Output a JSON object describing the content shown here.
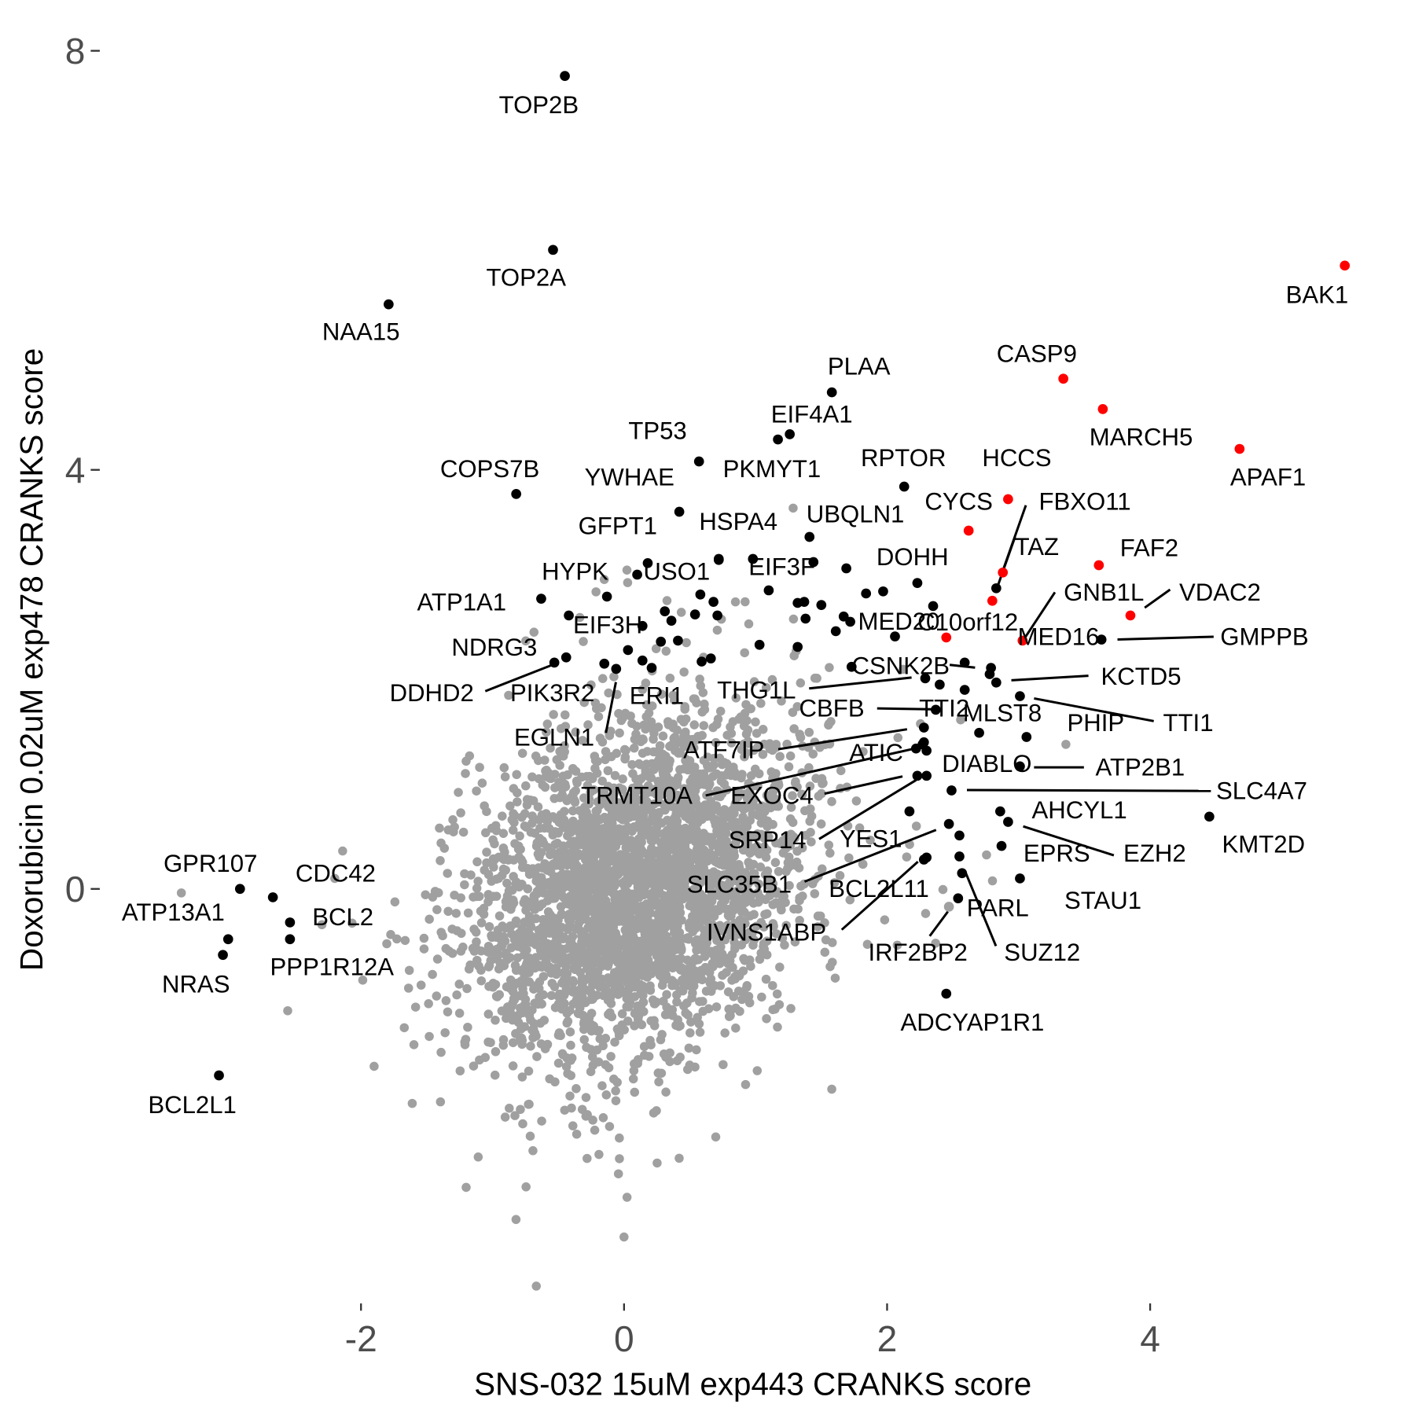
{
  "chart_data": {
    "type": "scatter",
    "title": "",
    "xlabel": "SNS-032 15uM exp443 CRANKS score",
    "ylabel": "Doxorubicin 0.02uM exp478 CRANKS score",
    "xlim": [
      -3.7,
      5.8
    ],
    "ylim": [
      -3.9,
      8.2
    ],
    "x_ticks": [
      -2,
      0,
      2,
      4
    ],
    "y_ticks": [
      0,
      4,
      8
    ],
    "x_tick_labels": [
      "-2",
      "0",
      "2",
      "4"
    ],
    "y_tick_labels": [
      "0",
      "4",
      "8"
    ],
    "grid": false,
    "legend": "none",
    "colors": {
      "background_genes": "#a0a0a0",
      "hit_genes": "#000000",
      "highlight_genes": "#ff0000",
      "label_line": "#000000"
    },
    "background_distribution": {
      "count": 3200,
      "x_mean": 0.1,
      "y_mean": 0.0,
      "x_sd": 0.62,
      "y_sd": 0.78,
      "correlation": 0.3,
      "seed": 7
    },
    "labeled_points": [
      {
        "gene": "TOP2B",
        "x": -0.45,
        "y": 7.76,
        "group": "hit"
      },
      {
        "gene": "TOP2A",
        "x": -0.54,
        "y": 6.1,
        "group": "hit"
      },
      {
        "gene": "NAA15",
        "x": -1.79,
        "y": 5.58,
        "group": "hit"
      },
      {
        "gene": "BAK1",
        "x": 5.48,
        "y": 5.95,
        "group": "highlight"
      },
      {
        "gene": "CASP9",
        "x": 3.34,
        "y": 4.87,
        "group": "highlight"
      },
      {
        "gene": "MARCH5",
        "x": 3.64,
        "y": 4.58,
        "group": "highlight"
      },
      {
        "gene": "APAF1",
        "x": 4.68,
        "y": 4.2,
        "group": "highlight"
      },
      {
        "gene": "PLAA",
        "x": 1.58,
        "y": 4.74,
        "group": "hit"
      },
      {
        "gene": "EIF4A1",
        "x": 1.26,
        "y": 4.34,
        "group": "hit"
      },
      {
        "gene": "TP53",
        "x": 0.57,
        "y": 4.08,
        "group": "hit"
      },
      {
        "gene": "PKMYT1",
        "x": 1.17,
        "y": 4.29,
        "group": "hit"
      },
      {
        "gene": "RPTOR",
        "x": 2.13,
        "y": 3.84,
        "group": "hit"
      },
      {
        "gene": "HCCS",
        "x": 2.92,
        "y": 3.72,
        "group": "highlight"
      },
      {
        "gene": "COPS7B",
        "x": -0.82,
        "y": 3.77,
        "group": "hit"
      },
      {
        "gene": "YWHAE",
        "x": 0.42,
        "y": 3.6,
        "group": "hit"
      },
      {
        "gene": "CYCS",
        "x": 2.62,
        "y": 3.42,
        "group": "highlight"
      },
      {
        "gene": "UBQLN1",
        "x": 1.41,
        "y": 3.36,
        "group": "hit"
      },
      {
        "gene": "HSPA4",
        "x": 0.72,
        "y": 3.15,
        "group": "hit"
      },
      {
        "gene": "GFPT1",
        "x": 0.18,
        "y": 3.11,
        "group": "hit"
      },
      {
        "gene": "FBXO11",
        "x": 2.88,
        "y": 3.02,
        "group": "highlight"
      },
      {
        "gene": "TAZ",
        "x": 2.83,
        "y": 2.87,
        "group": "hit"
      },
      {
        "gene": "FAF2",
        "x": 3.61,
        "y": 3.09,
        "group": "highlight"
      },
      {
        "gene": "DOHH",
        "x": 2.23,
        "y": 2.92,
        "group": "hit"
      },
      {
        "gene": "EIF3F",
        "x": 1.44,
        "y": 3.12,
        "group": "hit"
      },
      {
        "gene": "USO1",
        "x": 0.1,
        "y": 3.0,
        "group": "hit"
      },
      {
        "gene": "HYPK",
        "x": -0.13,
        "y": 2.79,
        "group": "hit"
      },
      {
        "gene": "ATP1A1",
        "x": -0.63,
        "y": 2.77,
        "group": "hit"
      },
      {
        "gene": "GNB1L",
        "x": 3.03,
        "y": 2.37,
        "group": "highlight"
      },
      {
        "gene": "VDAC2",
        "x": 3.85,
        "y": 2.61,
        "group": "highlight"
      },
      {
        "gene": "MED20",
        "x": 2.06,
        "y": 2.41,
        "group": "hit"
      },
      {
        "gene": "C10orf12",
        "x": 2.45,
        "y": 2.4,
        "group": "highlight"
      },
      {
        "gene": "MED16",
        "x": 2.8,
        "y": 2.75,
        "group": "highlight"
      },
      {
        "gene": "GMPPB",
        "x": 3.63,
        "y": 2.38,
        "group": "hit"
      },
      {
        "gene": "EIF3H",
        "x": -0.42,
        "y": 2.61,
        "group": "hit"
      },
      {
        "gene": "NDRG3",
        "x": -0.44,
        "y": 2.21,
        "group": "hit"
      },
      {
        "gene": "DDHD2",
        "x": -0.53,
        "y": 2.16,
        "group": "hit"
      },
      {
        "gene": "CSNK2B",
        "x": 2.79,
        "y": 2.11,
        "group": "hit"
      },
      {
        "gene": "KCTD5",
        "x": 2.83,
        "y": 1.97,
        "group": "hit"
      },
      {
        "gene": "THG1L",
        "x": 2.29,
        "y": 2.01,
        "group": "hit"
      },
      {
        "gene": "PIK3R2",
        "x": -0.15,
        "y": 2.15,
        "group": "hit"
      },
      {
        "gene": "ERI1",
        "x": 0.03,
        "y": 2.28,
        "group": "hit"
      },
      {
        "gene": "EGLN1",
        "x": -0.06,
        "y": 2.1,
        "group": "hit"
      },
      {
        "gene": "CBFB",
        "x": 2.37,
        "y": 1.71,
        "group": "hit"
      },
      {
        "gene": "TTI2",
        "x": 2.59,
        "y": 1.9,
        "group": "hit"
      },
      {
        "gene": "MLST8",
        "x": 2.7,
        "y": 1.49,
        "group": "hit"
      },
      {
        "gene": "TTI1",
        "x": 3.01,
        "y": 1.84,
        "group": "hit"
      },
      {
        "gene": "PHIP",
        "x": 3.06,
        "y": 1.45,
        "group": "hit"
      },
      {
        "gene": "ATF7IP",
        "x": 2.28,
        "y": 1.54,
        "group": "hit"
      },
      {
        "gene": "ATIC",
        "x": 2.28,
        "y": 1.4,
        "group": "hit"
      },
      {
        "gene": "DIABLO",
        "x": 2.3,
        "y": 1.32,
        "group": "hit"
      },
      {
        "gene": "ATP2B1",
        "x": 3.01,
        "y": 1.17,
        "group": "hit"
      },
      {
        "gene": "TRMT10A",
        "x": 2.22,
        "y": 1.34,
        "group": "hit"
      },
      {
        "gene": "EXOC4",
        "x": 2.23,
        "y": 1.08,
        "group": "hit"
      },
      {
        "gene": "SLC4A7",
        "x": 2.49,
        "y": 0.94,
        "group": "hit"
      },
      {
        "gene": "SRP14",
        "x": 2.3,
        "y": 1.08,
        "group": "hit"
      },
      {
        "gene": "YES1",
        "x": 2.17,
        "y": 0.74,
        "group": "hit"
      },
      {
        "gene": "SLC35B1",
        "x": 2.47,
        "y": 0.62,
        "group": "hit"
      },
      {
        "gene": "AHCYL1",
        "x": 2.86,
        "y": 0.74,
        "group": "hit"
      },
      {
        "gene": "EZH2",
        "x": 2.92,
        "y": 0.64,
        "group": "hit"
      },
      {
        "gene": "KMT2D",
        "x": 4.45,
        "y": 0.69,
        "group": "hit"
      },
      {
        "gene": "EPRS",
        "x": 2.87,
        "y": 0.41,
        "group": "hit"
      },
      {
        "gene": "BCL2L11",
        "x": 2.28,
        "y": 0.28,
        "group": "hit"
      },
      {
        "gene": "STAU1",
        "x": 3.01,
        "y": 0.1,
        "group": "hit"
      },
      {
        "gene": "IVNS1ABP",
        "x": 2.3,
        "y": 0.3,
        "group": "hit"
      },
      {
        "gene": "PARL",
        "x": 2.54,
        "y": -0.09,
        "group": "hit"
      },
      {
        "gene": "SUZ12",
        "x": 2.57,
        "y": 0.15,
        "group": "hit"
      },
      {
        "gene": "IRF2BP2",
        "x": 2.47,
        "y": -0.17,
        "group": "background"
      },
      {
        "gene": "ADCYAP1R1",
        "x": 2.45,
        "y": -1.0,
        "group": "hit"
      },
      {
        "gene": "GPR107",
        "x": -2.92,
        "y": 0.0,
        "group": "hit"
      },
      {
        "gene": "CDC42",
        "x": -2.67,
        "y": -0.08,
        "group": "hit"
      },
      {
        "gene": "BCL2",
        "x": -2.54,
        "y": -0.32,
        "group": "hit"
      },
      {
        "gene": "ATP13A1",
        "x": -3.01,
        "y": -0.48,
        "group": "hit"
      },
      {
        "gene": "PPP1R12A",
        "x": -2.54,
        "y": -0.48,
        "group": "hit"
      },
      {
        "gene": "NRAS",
        "x": -3.05,
        "y": -0.63,
        "group": "hit"
      },
      {
        "gene": "BCL2L1",
        "x": -3.08,
        "y": -1.78,
        "group": "hit"
      }
    ],
    "unlabeled_hits": [
      [
        0.31,
        2.65
      ],
      [
        0.36,
        2.56
      ],
      [
        0.58,
        2.81
      ],
      [
        0.68,
        2.74
      ],
      [
        0.54,
        2.62
      ],
      [
        0.71,
        2.61
      ],
      [
        0.14,
        2.51
      ],
      [
        0.14,
        2.18
      ],
      [
        0.21,
        2.11
      ],
      [
        0.28,
        2.36
      ],
      [
        0.41,
        2.37
      ],
      [
        0.59,
        2.17
      ],
      [
        0.66,
        2.2
      ],
      [
        0.72,
        3.14
      ],
      [
        0.98,
        3.15
      ],
      [
        1.1,
        2.85
      ],
      [
        1.03,
        2.33
      ],
      [
        1.32,
        2.31
      ],
      [
        1.32,
        2.73
      ],
      [
        1.37,
        2.74
      ],
      [
        1.5,
        2.71
      ],
      [
        1.38,
        2.58
      ],
      [
        1.61,
        2.46
      ],
      [
        1.67,
        2.6
      ],
      [
        1.72,
        2.55
      ],
      [
        1.69,
        3.06
      ],
      [
        1.84,
        2.82
      ],
      [
        1.97,
        2.84
      ],
      [
        1.73,
        2.12
      ],
      [
        2.35,
        2.7
      ],
      [
        2.59,
        2.16
      ],
      [
        2.27,
        1.38
      ],
      [
        2.55,
        0.51
      ],
      [
        2.55,
        0.31
      ],
      [
        2.4,
        1.95
      ],
      [
        2.78,
        2.05
      ]
    ]
  }
}
